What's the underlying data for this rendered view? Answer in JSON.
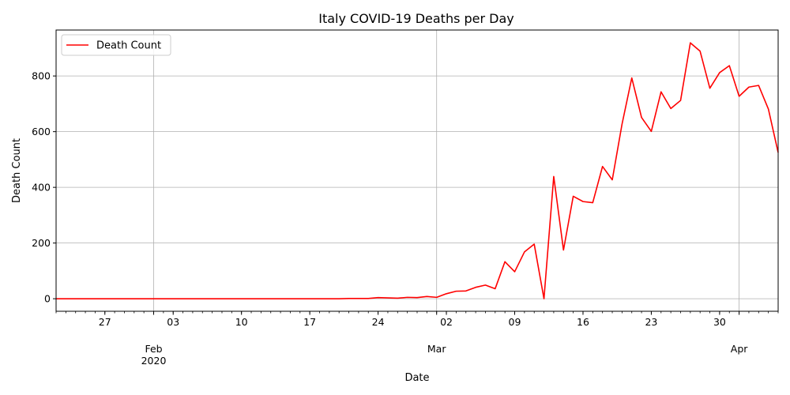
{
  "chart_data": {
    "type": "line",
    "title": "Italy COVID-19 Deaths per Day",
    "xlabel": "Date",
    "ylabel": "Death Count",
    "grid": true,
    "legend_position": "top-left",
    "xlim": [
      "2020-01-22",
      "2020-04-05"
    ],
    "ylim": [
      -45,
      965
    ],
    "y_ticks": [
      0,
      200,
      400,
      600,
      800
    ],
    "x_major_ticks": [
      {
        "date": "2020-01-27",
        "label": "27"
      },
      {
        "date": "2020-02-01",
        "label": "Feb",
        "sublabel": "2020"
      },
      {
        "date": "2020-02-03",
        "label": "03"
      },
      {
        "date": "2020-02-10",
        "label": "10"
      },
      {
        "date": "2020-02-17",
        "label": "17"
      },
      {
        "date": "2020-02-24",
        "label": "24"
      },
      {
        "date": "2020-03-01",
        "label": "Mar"
      },
      {
        "date": "2020-03-02",
        "label": "02"
      },
      {
        "date": "2020-03-09",
        "label": "09"
      },
      {
        "date": "2020-03-16",
        "label": "16"
      },
      {
        "date": "2020-03-23",
        "label": "23"
      },
      {
        "date": "2020-03-30",
        "label": "30"
      },
      {
        "date": "2020-04-01",
        "label": "Apr"
      }
    ],
    "x_gridlines": [
      "2020-02-01",
      "2020-03-01",
      "2020-04-01"
    ],
    "series": [
      {
        "name": "Death Count",
        "color": "#ff0000",
        "x": [
          "2020-01-22",
          "2020-01-23",
          "2020-01-24",
          "2020-01-25",
          "2020-01-26",
          "2020-01-27",
          "2020-01-28",
          "2020-01-29",
          "2020-01-30",
          "2020-01-31",
          "2020-02-01",
          "2020-02-02",
          "2020-02-03",
          "2020-02-04",
          "2020-02-05",
          "2020-02-06",
          "2020-02-07",
          "2020-02-08",
          "2020-02-09",
          "2020-02-10",
          "2020-02-11",
          "2020-02-12",
          "2020-02-13",
          "2020-02-14",
          "2020-02-15",
          "2020-02-16",
          "2020-02-17",
          "2020-02-18",
          "2020-02-19",
          "2020-02-20",
          "2020-02-21",
          "2020-02-22",
          "2020-02-23",
          "2020-02-24",
          "2020-02-25",
          "2020-02-26",
          "2020-02-27",
          "2020-02-28",
          "2020-02-29",
          "2020-03-01",
          "2020-03-02",
          "2020-03-03",
          "2020-03-04",
          "2020-03-05",
          "2020-03-06",
          "2020-03-07",
          "2020-03-08",
          "2020-03-09",
          "2020-03-10",
          "2020-03-11",
          "2020-03-12",
          "2020-03-13",
          "2020-03-14",
          "2020-03-15",
          "2020-03-16",
          "2020-03-17",
          "2020-03-18",
          "2020-03-19",
          "2020-03-20",
          "2020-03-21",
          "2020-03-22",
          "2020-03-23",
          "2020-03-24",
          "2020-03-25",
          "2020-03-26",
          "2020-03-27",
          "2020-03-28",
          "2020-03-29",
          "2020-03-30",
          "2020-03-31",
          "2020-04-01",
          "2020-04-02",
          "2020-04-03",
          "2020-04-04",
          "2020-04-05"
        ],
        "values": [
          0,
          0,
          0,
          0,
          0,
          0,
          0,
          0,
          0,
          0,
          0,
          0,
          0,
          0,
          0,
          0,
          0,
          0,
          0,
          0,
          0,
          0,
          0,
          0,
          0,
          0,
          0,
          0,
          0,
          0,
          1,
          1,
          1,
          4,
          3,
          2,
          5,
          4,
          8,
          5,
          18,
          27,
          28,
          41,
          49,
          36,
          133,
          97,
          168,
          196,
          0,
          439,
          175,
          368,
          349,
          345,
          475,
          427,
          627,
          793,
          651,
          601,
          743,
          683,
          712,
          919,
          889,
          756,
          812,
          837,
          727,
          760,
          766,
          681,
          525
        ]
      }
    ]
  }
}
